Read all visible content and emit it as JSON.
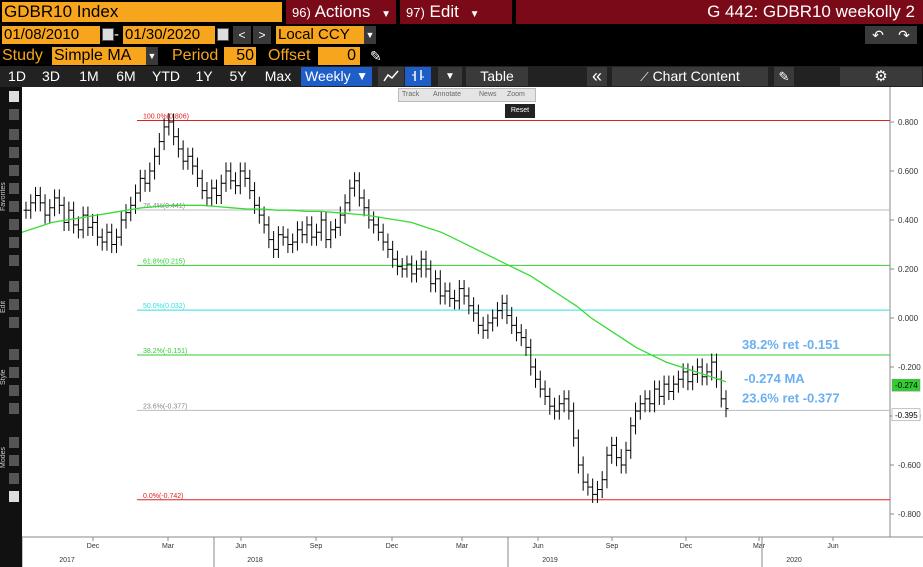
{
  "header": {
    "ticker": "GDBR10 Index",
    "actions_num": "96)",
    "actions_label": "Actions",
    "edit_num": "97)",
    "edit_label": "Edit",
    "window_title": "G 442: GDBR10 weekolly 2"
  },
  "date_range": {
    "start": "01/08/2010",
    "separator": "-",
    "end": "01/30/2020",
    "currency": "Local CCY"
  },
  "study": {
    "study_label": "Study",
    "study_value": "Simple MA",
    "period_label": "Period",
    "period_value": "50",
    "offset_label": "Offset",
    "offset_value": "0"
  },
  "toolbar": {
    "periods": [
      "1D",
      "3D",
      "1M",
      "6M",
      "YTD",
      "1Y",
      "5Y",
      "Max"
    ],
    "frequency": "Weekly",
    "table_label": "Table",
    "chart_content_label": "Chart Content"
  },
  "sidebar": {
    "favorites": "Favorites",
    "edit": "Edit",
    "style": "Style",
    "modes": "Modes"
  },
  "mini_toolbar": {
    "track": "Track",
    "annotate": "Annotate",
    "news": "News",
    "zoom": "Zoom",
    "reset": "Reset"
  },
  "chart_data": {
    "type": "line",
    "title": "",
    "xlabel": "",
    "ylabel": "",
    "ylim": [
      -0.85,
      0.9
    ],
    "grid": "off",
    "y_ticks": [
      "0.800",
      "0.600",
      "0.400",
      "0.200",
      "0.000",
      "-0.200",
      "-0.400",
      "-0.600",
      "-0.800"
    ],
    "x_month_ticks": [
      "Dec",
      "Mar",
      "Jun",
      "Sep",
      "Dec",
      "Mar",
      "Jun",
      "Sep",
      "Dec",
      "Mar",
      "Jun"
    ],
    "x_year_labels": [
      "2017",
      "2018",
      "2019",
      "2020"
    ],
    "fib_levels": [
      {
        "label": "100.0%(0.806)",
        "value": 0.806,
        "color": "#e02020"
      },
      {
        "label": "76.4%(0.441)",
        "value": 0.441,
        "color": "#bbbbbb"
      },
      {
        "label": "61.8%(0.215)",
        "value": 0.215,
        "color": "#33cc33"
      },
      {
        "label": "50.0%(0.032)",
        "value": 0.032,
        "color": "#33dddd"
      },
      {
        "label": "38.2%(-0.151)",
        "value": -0.151,
        "color": "#33cc33"
      },
      {
        "label": "23.6%(-0.377)",
        "value": -0.377,
        "color": "#bbbbbb"
      },
      {
        "label": "0.0%(-0.742)",
        "value": -0.742,
        "color": "#e02020"
      }
    ],
    "annotations": [
      {
        "text": "38.2% ret -0.151",
        "color": "#6ab0f0"
      },
      {
        "text": "-0.274 MA",
        "color": "#6ab0f0"
      },
      {
        "text": "23.6% ret -0.377",
        "color": "#6ab0f0"
      }
    ],
    "price_badges": [
      {
        "text": "-0.274",
        "value": -0.274,
        "color": "#33cc33"
      },
      {
        "text": "-0.395",
        "value": -0.395,
        "color": "#ffffff"
      }
    ],
    "series": [
      {
        "name": "",
        "color": "#000000",
        "values": [
          0.44,
          0.47,
          0.5,
          0.47,
          0.42,
          0.45,
          0.49,
          0.46,
          0.39,
          0.44,
          0.38,
          0.36,
          0.42,
          0.37,
          0.39,
          0.33,
          0.31,
          0.35,
          0.3,
          0.33,
          0.4,
          0.43,
          0.46,
          0.51,
          0.57,
          0.55,
          0.6,
          0.66,
          0.72,
          0.78,
          0.8,
          0.74,
          0.69,
          0.64,
          0.66,
          0.62,
          0.57,
          0.52,
          0.49,
          0.53,
          0.5,
          0.55,
          0.6,
          0.56,
          0.54,
          0.6,
          0.57,
          0.52,
          0.46,
          0.42,
          0.38,
          0.32,
          0.28,
          0.34,
          0.33,
          0.3,
          0.31,
          0.36,
          0.34,
          0.38,
          0.33,
          0.35,
          0.4,
          0.32,
          0.36,
          0.37,
          0.42,
          0.47,
          0.53,
          0.56,
          0.49,
          0.45,
          0.4,
          0.38,
          0.35,
          0.31,
          0.28,
          0.24,
          0.21,
          0.2,
          0.22,
          0.18,
          0.2,
          0.24,
          0.2,
          0.14,
          0.16,
          0.09,
          0.11,
          0.08,
          0.07,
          0.12,
          0.09,
          0.05,
          0.02,
          -0.03,
          -0.05,
          -0.02,
          0.0,
          0.03,
          0.06,
          0.01,
          -0.03,
          -0.06,
          -0.08,
          -0.12,
          -0.2,
          -0.25,
          -0.29,
          -0.32,
          -0.36,
          -0.38,
          -0.35,
          -0.33,
          -0.38,
          -0.49,
          -0.6,
          -0.67,
          -0.69,
          -0.72,
          -0.7,
          -0.66,
          -0.56,
          -0.52,
          -0.57,
          -0.6,
          -0.54,
          -0.44,
          -0.38,
          -0.35,
          -0.33,
          -0.35,
          -0.29,
          -0.32,
          -0.27,
          -0.3,
          -0.27,
          -0.25,
          -0.22,
          -0.26,
          -0.23,
          -0.2,
          -0.24,
          -0.22,
          -0.18,
          -0.25,
          -0.33,
          -0.37
        ]
      },
      {
        "name": "",
        "color": "#33dd33",
        "values": [
          0.35,
          0.37,
          0.39,
          0.4,
          0.41,
          0.42,
          0.43,
          0.44,
          0.45,
          0.455,
          0.46,
          0.46,
          0.46,
          0.455,
          0.45,
          0.445,
          0.445,
          0.44,
          0.44,
          0.435,
          0.435,
          0.43,
          0.425,
          0.42,
          0.41,
          0.4,
          0.39,
          0.37,
          0.35,
          0.32,
          0.29,
          0.26,
          0.23,
          0.2,
          0.17,
          0.13,
          0.09,
          0.05,
          0.0,
          -0.04,
          -0.08,
          -0.12,
          -0.15,
          -0.18,
          -0.2,
          -0.22,
          -0.24,
          -0.26
        ]
      }
    ]
  }
}
